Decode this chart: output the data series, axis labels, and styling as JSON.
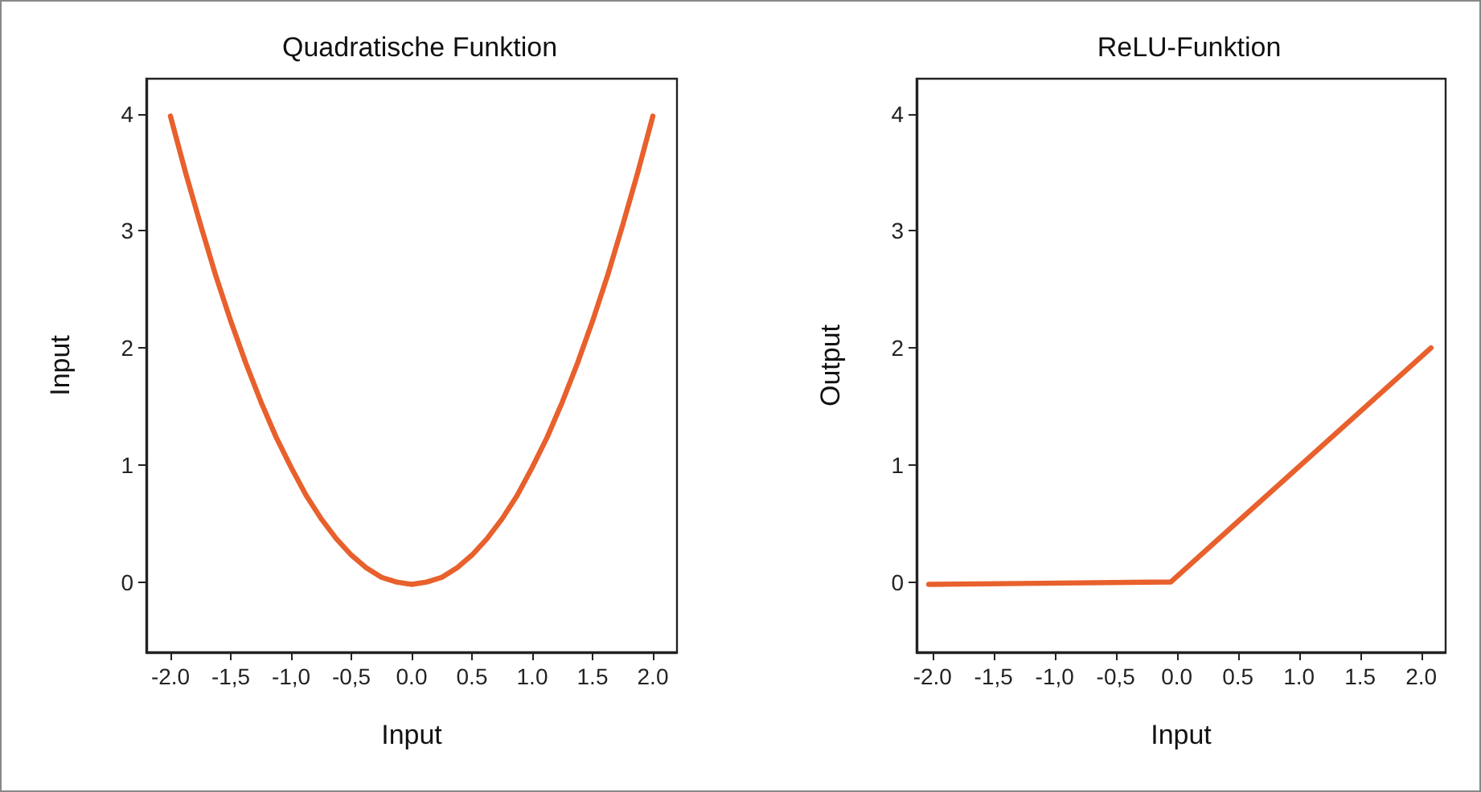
{
  "chart_data": [
    {
      "type": "line",
      "title": "Quadratische Funktion",
      "xlabel": "Input",
      "ylabel": "Input",
      "x": [
        -2,
        -1.875,
        -1.75,
        -1.625,
        -1.5,
        -1.375,
        -1.25,
        -1.125,
        -1,
        -0.875,
        -0.75,
        -0.625,
        -0.5,
        -0.375,
        -0.25,
        -0.125,
        0,
        0.125,
        0.25,
        0.375,
        0.5,
        0.625,
        0.75,
        0.875,
        1,
        1.125,
        1.25,
        1.375,
        1.5,
        1.625,
        1.75,
        1.875,
        2
      ],
      "series": [
        {
          "color": "#e8602c",
          "values": [
            3.98,
            3.5,
            3.05,
            2.62,
            2.23,
            1.87,
            1.54,
            1.24,
            0.98,
            0.74,
            0.54,
            0.37,
            0.23,
            0.12,
            0.04,
            0,
            -0.02,
            0,
            0.04,
            0.12,
            0.23,
            0.37,
            0.54,
            0.74,
            0.98,
            1.24,
            1.54,
            1.87,
            2.23,
            2.62,
            3.05,
            3.5,
            3.98
          ]
        }
      ],
      "xlim": [
        -2.2,
        2.2
      ],
      "ylim": [
        -0.6,
        4.3
      ],
      "xticks": [
        {
          "value": -2,
          "label": "-2.0"
        },
        {
          "value": -1.5,
          "label": "-1,5"
        },
        {
          "value": -1,
          "label": "-1,0"
        },
        {
          "value": -0.5,
          "label": "-0,5"
        },
        {
          "value": 0,
          "label": "0.0"
        },
        {
          "value": 0.5,
          "label": "0.5"
        },
        {
          "value": 1,
          "label": "1.0"
        },
        {
          "value": 1.5,
          "label": "1.5"
        },
        {
          "value": 2,
          "label": "2.0"
        }
      ],
      "yticks": [
        0,
        1,
        2,
        3,
        4
      ],
      "grid": false,
      "marker": "none",
      "line_style": "solid"
    },
    {
      "type": "line",
      "title": "ReLU-Funktion",
      "xlabel": "Input",
      "ylabel": "Output",
      "x": [
        -2.03,
        -0.05,
        2.08
      ],
      "series": [
        {
          "color": "#e8602c",
          "values": [
            -0.02,
            0,
            2.0
          ]
        }
      ],
      "xlim": [
        -2.13,
        2.2
      ],
      "ylim": [
        -0.6,
        4.3
      ],
      "xticks": [
        {
          "value": -2,
          "label": "-2.0"
        },
        {
          "value": -1.5,
          "label": "-1,5"
        },
        {
          "value": -1,
          "label": "-1,0"
        },
        {
          "value": -0.5,
          "label": "-0,5"
        },
        {
          "value": 0,
          "label": "0.0"
        },
        {
          "value": 0.5,
          "label": "0.5"
        },
        {
          "value": 1,
          "label": "1.0"
        },
        {
          "value": 1.5,
          "label": "1.5"
        },
        {
          "value": 2,
          "label": "2.0"
        }
      ],
      "yticks": [
        0,
        1,
        2,
        3,
        4
      ],
      "grid": false,
      "marker": "none",
      "line_style": "solid"
    }
  ]
}
